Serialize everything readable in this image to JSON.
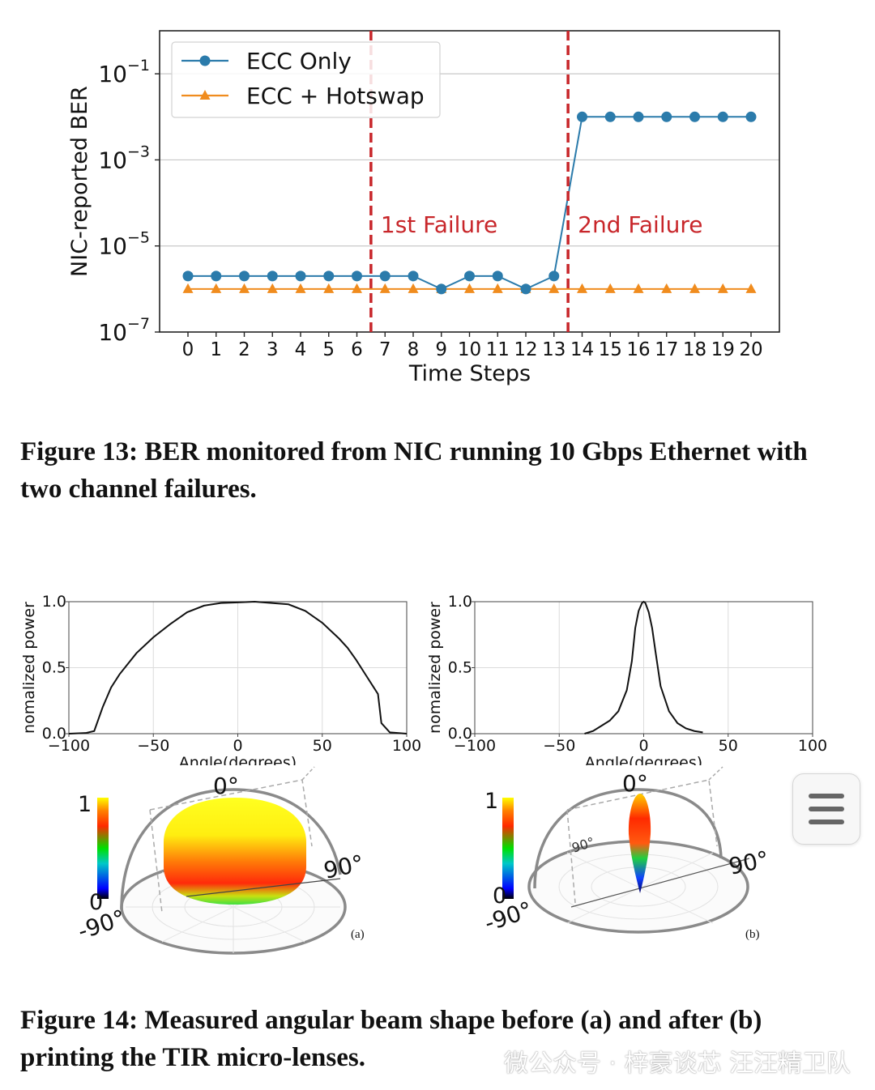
{
  "chart_data": [
    {
      "type": "line",
      "xlabel": "Time Steps",
      "ylabel": "NIC-reported BER",
      "yscale": "log",
      "ylim": [
        1e-07,
        1
      ],
      "yticks": [
        {
          "value": 1e-07,
          "base": "10",
          "exp": "−7"
        },
        {
          "value": 1e-05,
          "base": "10",
          "exp": "−5"
        },
        {
          "value": 0.001,
          "base": "10",
          "exp": "−3"
        },
        {
          "value": 0.1,
          "base": "10",
          "exp": "−1"
        }
      ],
      "x": [
        0,
        1,
        2,
        3,
        4,
        5,
        6,
        7,
        8,
        9,
        10,
        11,
        12,
        13,
        14,
        15,
        16,
        17,
        18,
        19,
        20
      ],
      "series": [
        {
          "name": "ECC Only",
          "color": "#2b7bab",
          "marker": "circle",
          "values": [
            2e-06,
            2e-06,
            2e-06,
            2e-06,
            2e-06,
            2e-06,
            2e-06,
            2e-06,
            2e-06,
            1e-06,
            2e-06,
            2e-06,
            1e-06,
            2e-06,
            0.01,
            0.01,
            0.01,
            0.01,
            0.01,
            0.01,
            0.01
          ]
        },
        {
          "name": "ECC + Hotswap",
          "color": "#f08c1e",
          "marker": "triangle",
          "values": [
            1e-06,
            1e-06,
            1e-06,
            1e-06,
            1e-06,
            1e-06,
            1e-06,
            1e-06,
            1e-06,
            1e-06,
            1e-06,
            1e-06,
            1e-06,
            1e-06,
            1e-06,
            1e-06,
            1e-06,
            1e-06,
            1e-06,
            1e-06,
            1e-06
          ]
        }
      ],
      "annotations": [
        {
          "x": 6.5,
          "label": "1st Failure",
          "color": "#c8262a",
          "style": "dashed vertical line"
        },
        {
          "x": 13.5,
          "label": "2nd Failure",
          "color": "#c8262a",
          "style": "dashed vertical line"
        }
      ],
      "grid": "horizontal",
      "legend": "top-left"
    },
    {
      "type": "line",
      "panel": "(a)",
      "xlabel": "Angle(degrees)",
      "ylabel": "nomalized power",
      "xlim": [
        -100,
        100
      ],
      "ylim": [
        0,
        1
      ],
      "xticks": [
        "−100",
        "−50",
        "0",
        "50",
        "100"
      ],
      "yticks": [
        "0.0",
        "0.5",
        "1.0"
      ],
      "x": [
        -100,
        -90,
        -85,
        -80,
        -75,
        -70,
        -65,
        -60,
        -50,
        -40,
        -30,
        -20,
        -10,
        0,
        10,
        20,
        30,
        40,
        50,
        60,
        65,
        70,
        75,
        80,
        83,
        85,
        90,
        100
      ],
      "values": [
        0,
        0.005,
        0.02,
        0.2,
        0.35,
        0.45,
        0.53,
        0.61,
        0.73,
        0.83,
        0.92,
        0.97,
        0.99,
        0.995,
        1.0,
        0.99,
        0.98,
        0.93,
        0.84,
        0.72,
        0.65,
        0.56,
        0.46,
        0.36,
        0.3,
        0.08,
        0.01,
        0
      ],
      "grid": true
    },
    {
      "type": "line",
      "panel": "(b)",
      "xlabel": "Angle(degrees)",
      "ylabel": "nomalized power",
      "xlim": [
        -100,
        100
      ],
      "ylim": [
        0,
        1
      ],
      "xticks": [
        "−100",
        "−50",
        "0",
        "50",
        "100"
      ],
      "yticks": [
        "0.0",
        "0.5",
        "1.0"
      ],
      "x": [
        -35,
        -30,
        -25,
        -20,
        -15,
        -10,
        -7,
        -5,
        -3,
        -1,
        0,
        1,
        3,
        5,
        7,
        10,
        15,
        20,
        25,
        30,
        35
      ],
      "values": [
        0,
        0.02,
        0.06,
        0.1,
        0.17,
        0.33,
        0.55,
        0.8,
        0.93,
        0.99,
        1.0,
        0.99,
        0.92,
        0.8,
        0.62,
        0.36,
        0.17,
        0.08,
        0.04,
        0.02,
        0.01
      ],
      "grid": true
    }
  ],
  "polar_a": {
    "deg0": "0°",
    "deg90": "90°",
    "degm90": "-90°",
    "cbar_top": "1",
    "cbar_bottom": "0",
    "panel": "(a)"
  },
  "polar_b": {
    "deg0": "0°",
    "deg90": "90°",
    "degm90": "-90°",
    "inner90": "90°",
    "cbar_top": "1",
    "cbar_bottom": "0",
    "panel": "(b)"
  },
  "captions": {
    "fig13": "Figure 13: BER monitored from NIC running 10 Gbps Ethernet with two channel failures.",
    "fig14": "Figure 14: Measured angular beam shape before (a) and after (b) printing the TIR micro-lenses."
  },
  "watermark": "微公众号 · 梓豪谈芯 汪汪精卫队",
  "menu_icon": "hamburger-menu-icon"
}
